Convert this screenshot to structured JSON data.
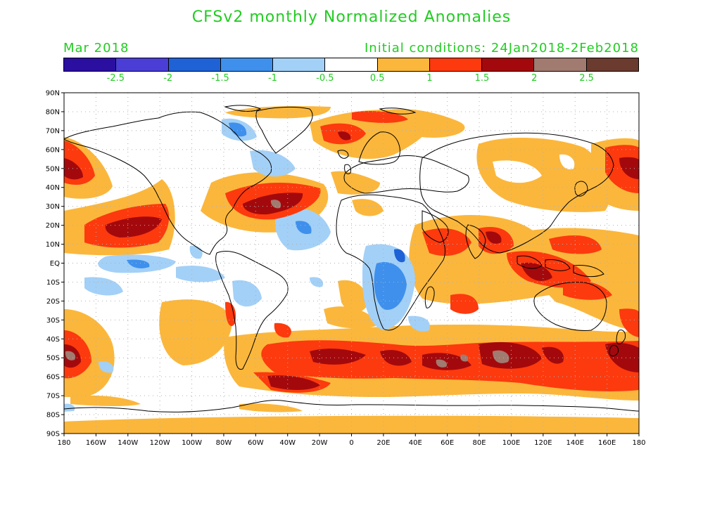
{
  "header": {
    "title": "CFSv2 monthly Normalized Anomalies",
    "target_month": "Mar 2018",
    "initial_conditions": "Initial conditions: 24Jan2018-2Feb2018",
    "text_color": "#22cc22"
  },
  "colorbar": {
    "colors": [
      "#2a0fa0",
      "#4a3ed6",
      "#1f62d6",
      "#3e90ec",
      "#a3d0f7",
      "#ffffff",
      "#fbb73c",
      "#fc3a0e",
      "#a3090c",
      "#a17a70",
      "#6a3b2e"
    ],
    "labels": [
      "-2.5",
      "-2",
      "-1.5",
      "-1",
      "-0.5",
      "0.5",
      "1",
      "1.5",
      "2",
      "2.5"
    ]
  },
  "map": {
    "lat_labels": [
      "90N",
      "80N",
      "70N",
      "60N",
      "50N",
      "40N",
      "30N",
      "20N",
      "10N",
      "EQ",
      "10S",
      "20S",
      "30S",
      "40S",
      "50S",
      "60S",
      "70S",
      "80S",
      "90S"
    ],
    "lon_labels": [
      "180",
      "160W",
      "140W",
      "120W",
      "100W",
      "80W",
      "60W",
      "40W",
      "20W",
      "0",
      "20E",
      "40E",
      "60E",
      "80E",
      "100E",
      "120E",
      "140E",
      "160E",
      "180"
    ],
    "grid": "dotted"
  }
}
